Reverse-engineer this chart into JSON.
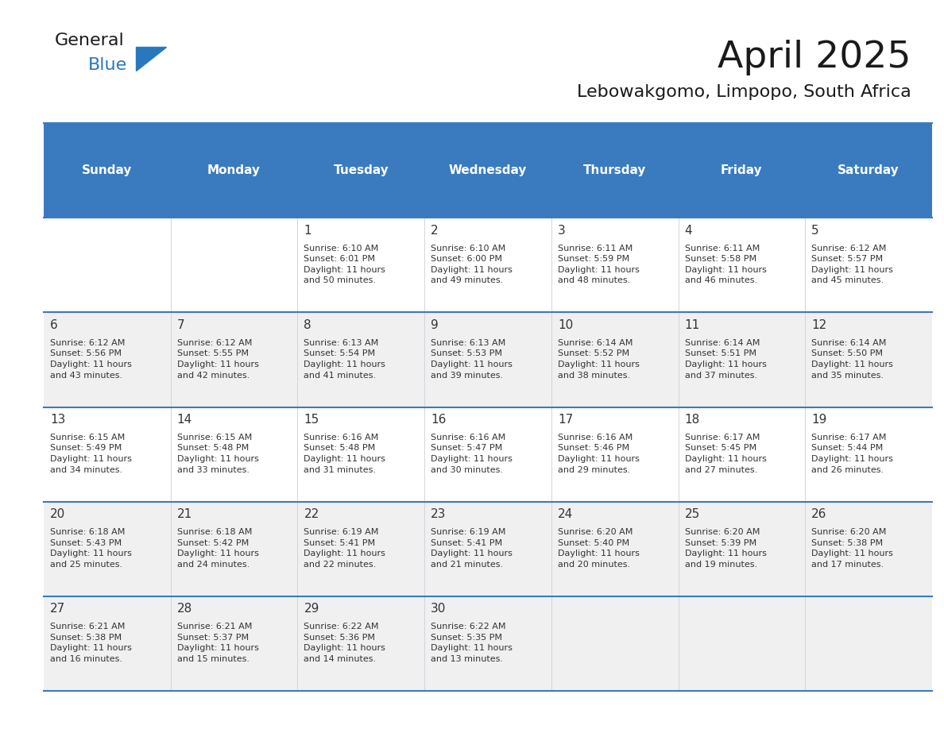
{
  "title": "April 2025",
  "subtitle": "Lebowakgomo, Limpopo, South Africa",
  "header_bg_color": "#3a7bbf",
  "header_text_color": "#ffffff",
  "row_bg_colors": [
    "#ffffff",
    "#f0f0f0",
    "#ffffff",
    "#f0f0f0",
    "#f0f0f0"
  ],
  "border_color": "#3a7bbf",
  "cell_border_color": "#b0b8c8",
  "text_color": "#333333",
  "days_of_week": [
    "Sunday",
    "Monday",
    "Tuesday",
    "Wednesday",
    "Thursday",
    "Friday",
    "Saturday"
  ],
  "weeks": [
    [
      {
        "day": "",
        "info": ""
      },
      {
        "day": "",
        "info": ""
      },
      {
        "day": "1",
        "info": "Sunrise: 6:10 AM\nSunset: 6:01 PM\nDaylight: 11 hours\nand 50 minutes."
      },
      {
        "day": "2",
        "info": "Sunrise: 6:10 AM\nSunset: 6:00 PM\nDaylight: 11 hours\nand 49 minutes."
      },
      {
        "day": "3",
        "info": "Sunrise: 6:11 AM\nSunset: 5:59 PM\nDaylight: 11 hours\nand 48 minutes."
      },
      {
        "day": "4",
        "info": "Sunrise: 6:11 AM\nSunset: 5:58 PM\nDaylight: 11 hours\nand 46 minutes."
      },
      {
        "day": "5",
        "info": "Sunrise: 6:12 AM\nSunset: 5:57 PM\nDaylight: 11 hours\nand 45 minutes."
      }
    ],
    [
      {
        "day": "6",
        "info": "Sunrise: 6:12 AM\nSunset: 5:56 PM\nDaylight: 11 hours\nand 43 minutes."
      },
      {
        "day": "7",
        "info": "Sunrise: 6:12 AM\nSunset: 5:55 PM\nDaylight: 11 hours\nand 42 minutes."
      },
      {
        "day": "8",
        "info": "Sunrise: 6:13 AM\nSunset: 5:54 PM\nDaylight: 11 hours\nand 41 minutes."
      },
      {
        "day": "9",
        "info": "Sunrise: 6:13 AM\nSunset: 5:53 PM\nDaylight: 11 hours\nand 39 minutes."
      },
      {
        "day": "10",
        "info": "Sunrise: 6:14 AM\nSunset: 5:52 PM\nDaylight: 11 hours\nand 38 minutes."
      },
      {
        "day": "11",
        "info": "Sunrise: 6:14 AM\nSunset: 5:51 PM\nDaylight: 11 hours\nand 37 minutes."
      },
      {
        "day": "12",
        "info": "Sunrise: 6:14 AM\nSunset: 5:50 PM\nDaylight: 11 hours\nand 35 minutes."
      }
    ],
    [
      {
        "day": "13",
        "info": "Sunrise: 6:15 AM\nSunset: 5:49 PM\nDaylight: 11 hours\nand 34 minutes."
      },
      {
        "day": "14",
        "info": "Sunrise: 6:15 AM\nSunset: 5:48 PM\nDaylight: 11 hours\nand 33 minutes."
      },
      {
        "day": "15",
        "info": "Sunrise: 6:16 AM\nSunset: 5:48 PM\nDaylight: 11 hours\nand 31 minutes."
      },
      {
        "day": "16",
        "info": "Sunrise: 6:16 AM\nSunset: 5:47 PM\nDaylight: 11 hours\nand 30 minutes."
      },
      {
        "day": "17",
        "info": "Sunrise: 6:16 AM\nSunset: 5:46 PM\nDaylight: 11 hours\nand 29 minutes."
      },
      {
        "day": "18",
        "info": "Sunrise: 6:17 AM\nSunset: 5:45 PM\nDaylight: 11 hours\nand 27 minutes."
      },
      {
        "day": "19",
        "info": "Sunrise: 6:17 AM\nSunset: 5:44 PM\nDaylight: 11 hours\nand 26 minutes."
      }
    ],
    [
      {
        "day": "20",
        "info": "Sunrise: 6:18 AM\nSunset: 5:43 PM\nDaylight: 11 hours\nand 25 minutes."
      },
      {
        "day": "21",
        "info": "Sunrise: 6:18 AM\nSunset: 5:42 PM\nDaylight: 11 hours\nand 24 minutes."
      },
      {
        "day": "22",
        "info": "Sunrise: 6:19 AM\nSunset: 5:41 PM\nDaylight: 11 hours\nand 22 minutes."
      },
      {
        "day": "23",
        "info": "Sunrise: 6:19 AM\nSunset: 5:41 PM\nDaylight: 11 hours\nand 21 minutes."
      },
      {
        "day": "24",
        "info": "Sunrise: 6:20 AM\nSunset: 5:40 PM\nDaylight: 11 hours\nand 20 minutes."
      },
      {
        "day": "25",
        "info": "Sunrise: 6:20 AM\nSunset: 5:39 PM\nDaylight: 11 hours\nand 19 minutes."
      },
      {
        "day": "26",
        "info": "Sunrise: 6:20 AM\nSunset: 5:38 PM\nDaylight: 11 hours\nand 17 minutes."
      }
    ],
    [
      {
        "day": "27",
        "info": "Sunrise: 6:21 AM\nSunset: 5:38 PM\nDaylight: 11 hours\nand 16 minutes."
      },
      {
        "day": "28",
        "info": "Sunrise: 6:21 AM\nSunset: 5:37 PM\nDaylight: 11 hours\nand 15 minutes."
      },
      {
        "day": "29",
        "info": "Sunrise: 6:22 AM\nSunset: 5:36 PM\nDaylight: 11 hours\nand 14 minutes."
      },
      {
        "day": "30",
        "info": "Sunrise: 6:22 AM\nSunset: 5:35 PM\nDaylight: 11 hours\nand 13 minutes."
      },
      {
        "day": "",
        "info": ""
      },
      {
        "day": "",
        "info": ""
      },
      {
        "day": "",
        "info": ""
      }
    ]
  ],
  "logo_color_general": "#1a1a1a",
  "logo_color_blue": "#2878be",
  "logo_triangle_color": "#2878be",
  "title_fontsize": 34,
  "subtitle_fontsize": 16,
  "header_fontsize": 11,
  "day_num_fontsize": 11,
  "info_fontsize": 8
}
